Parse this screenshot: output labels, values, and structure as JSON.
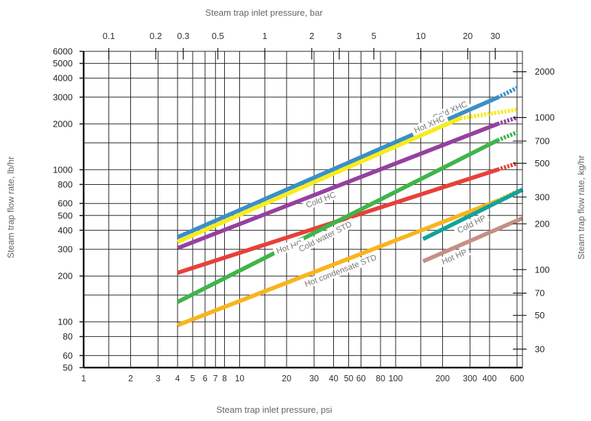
{
  "chart_data": {
    "type": "line",
    "axes": {
      "x_bottom": {
        "label": "Steam trap inlet pressure, psi",
        "scale": "log",
        "range": [
          1,
          650
        ],
        "tick_labels": [
          1,
          2,
          3,
          4,
          5,
          6,
          7,
          8,
          10,
          20,
          30,
          40,
          50,
          60,
          80,
          100,
          200,
          300,
          400,
          600
        ]
      },
      "x_top": {
        "label": "Steam trap inlet pressure, bar",
        "scale": "log",
        "tick_labels": [
          0.1,
          0.2,
          0.3,
          0.5,
          1,
          2,
          3,
          5,
          10,
          20,
          30
        ]
      },
      "y_left": {
        "label": "Steam trap flow rate, lb/hr",
        "scale": "log",
        "range": [
          50,
          6000
        ],
        "tick_labels": [
          50,
          60,
          80,
          100,
          200,
          300,
          400,
          500,
          600,
          800,
          1000,
          2000,
          3000,
          4000,
          5000,
          6000
        ]
      },
      "y_right": {
        "label": "Steam trap flow rate, kg/hr",
        "scale": "log",
        "tick_labels": [
          30,
          50,
          70,
          100,
          200,
          300,
          500,
          700,
          1000,
          2000
        ]
      }
    },
    "grid": true,
    "series": [
      {
        "name": "Cold XHC",
        "color": "#3a8fc8",
        "x": [
          4,
          450
        ],
        "y": [
          360,
          2980
        ],
        "dashed_extension": {
          "x": [
            450,
            600
          ],
          "y": [
            2980,
            3450
          ]
        }
      },
      {
        "name": "Hot XHC",
        "color": "#f7ec1c",
        "x": [
          4,
          260
        ],
        "y": [
          335,
          2180
        ],
        "dashed_extension": {
          "x": [
            260,
            600
          ],
          "y": [
            2180,
            2480
          ]
        }
      },
      {
        "name": "Cold HC",
        "color": "#9640a0",
        "x": [
          4,
          450
        ],
        "y": [
          305,
          2000
        ],
        "dashed_extension": {
          "x": [
            450,
            600
          ],
          "y": [
            2000,
            2200
          ]
        }
      },
      {
        "name": "Hot HC",
        "color": "#e8403a",
        "x": [
          4,
          450
        ],
        "y": [
          210,
          1000
        ],
        "dashed_extension": {
          "x": [
            450,
            600
          ],
          "y": [
            1000,
            1100
          ]
        }
      },
      {
        "name": "Cold water STD",
        "color": "#3fb54a",
        "x": [
          4,
          450
        ],
        "y": [
          135,
          1560
        ],
        "dashed_extension": {
          "x": [
            450,
            600
          ],
          "y": [
            1560,
            1760
          ]
        }
      },
      {
        "name": "Hot condensate STD",
        "color": "#f9b41c",
        "x": [
          4,
          450
        ],
        "y": [
          95,
          625
        ],
        "dashed_extension": {
          "x": [
            450,
            600
          ],
          "y": [
            625,
            720
          ]
        }
      },
      {
        "name": "Cold HP",
        "color": "#12a39a",
        "x": [
          150,
          650
        ],
        "y": [
          350,
          740
        ]
      },
      {
        "name": "Hot HP",
        "color": "#c68f86",
        "x": [
          150,
          650
        ],
        "y": [
          250,
          480
        ]
      }
    ]
  }
}
